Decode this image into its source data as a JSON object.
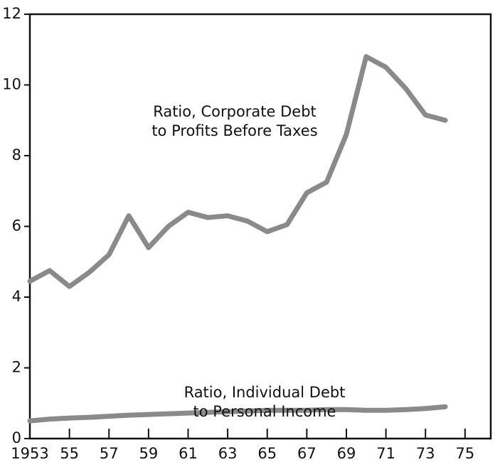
{
  "chart_data": {
    "type": "line",
    "x": [
      1953,
      1954,
      1955,
      1956,
      1957,
      1958,
      1959,
      1960,
      1961,
      1962,
      1963,
      1964,
      1965,
      1966,
      1967,
      1968,
      1969,
      1970,
      1971,
      1972,
      1973,
      1974
    ],
    "series": [
      {
        "color": "#8a8a8a",
        "values": [
          4.45,
          4.75,
          4.3,
          4.7,
          5.2,
          6.3,
          5.4,
          6.0,
          6.4,
          6.25,
          6.3,
          6.15,
          5.85,
          6.05,
          6.95,
          7.25,
          8.6,
          10.8,
          10.5,
          9.9,
          9.15,
          9.0
        ]
      },
      {
        "color": "#8a8a8a",
        "values": [
          0.5,
          0.55,
          0.58,
          0.6,
          0.63,
          0.66,
          0.68,
          0.7,
          0.72,
          0.74,
          0.76,
          0.78,
          0.8,
          0.8,
          0.8,
          0.82,
          0.82,
          0.8,
          0.8,
          0.82,
          0.85,
          0.9
        ]
      }
    ],
    "annotations": [
      {
        "lines": [
          "Ratio, Corporate Debt",
          "to Profits Before Taxes"
        ]
      },
      {
        "lines": [
          "Ratio, Individual Debt",
          "to Personal Income"
        ]
      }
    ],
    "xlim": [
      1953,
      1976.3
    ],
    "xticks": [
      1953,
      {
        "value": 1955,
        "label": "55"
      },
      {
        "value": 1957,
        "label": "57"
      },
      {
        "value": 1959,
        "label": "59"
      },
      {
        "value": 1961,
        "label": "61"
      },
      {
        "value": 1963,
        "label": "63"
      },
      {
        "value": 1965,
        "label": "65"
      },
      {
        "value": 1967,
        "label": "67"
      },
      {
        "value": 1969,
        "label": "69"
      },
      {
        "value": 1971,
        "label": "71"
      },
      {
        "value": 1973,
        "label": "73"
      },
      {
        "value": 1975,
        "label": "75"
      }
    ],
    "ylim": [
      0,
      12
    ],
    "yticks": [
      0,
      2,
      4,
      6,
      8,
      10,
      12
    ]
  }
}
